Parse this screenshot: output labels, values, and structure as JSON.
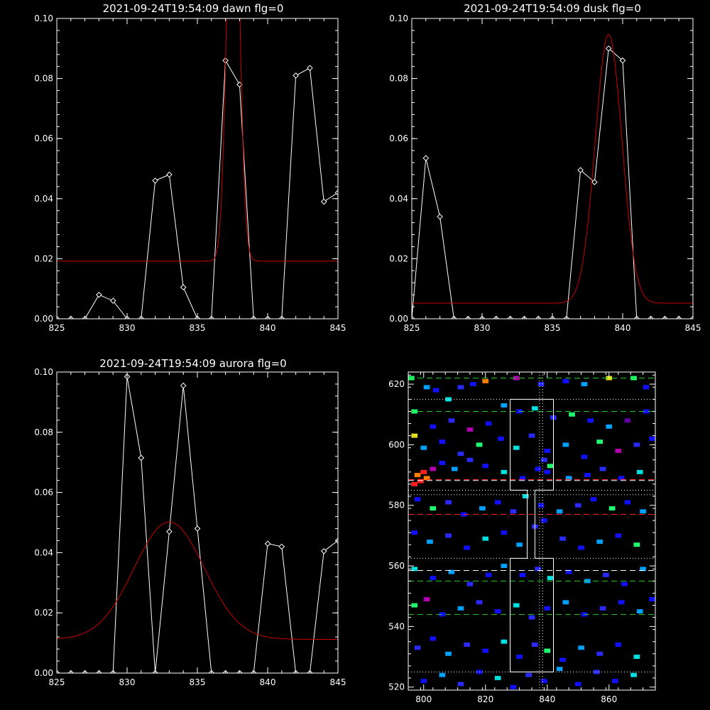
{
  "colors": {
    "background": "#000000",
    "axes": "#ffffff",
    "data": "#ffffff",
    "fit": "#cc0000",
    "green_dash": "#22cc22",
    "red_dash": "#ff2020",
    "white_dash": "#ffffff"
  },
  "chart_data": [
    {
      "type": "line",
      "title": "2021-09-24T19:54:09 dawn flg=0",
      "xlim": [
        825,
        845
      ],
      "ylim": [
        0,
        0.1
      ],
      "xticks": [
        825,
        830,
        835,
        840,
        845
      ],
      "yticks": [
        0.0,
        0.02,
        0.04,
        0.06,
        0.08,
        0.1
      ],
      "xtick_labels": [
        "825",
        "830",
        "835",
        "840",
        "845"
      ],
      "ytick_labels": [
        "0.00",
        "0.02",
        "0.04",
        "0.06",
        "0.08",
        "0.10"
      ],
      "series": [
        {
          "marker": "diamond",
          "x": [
            825,
            826,
            827,
            828,
            829,
            830,
            831,
            832,
            833,
            834,
            835,
            836,
            837,
            838,
            839,
            840,
            841,
            842,
            843,
            844,
            845
          ],
          "y": [
            0,
            0,
            0,
            0.008,
            0.006,
            0,
            0,
            0.046,
            0.048,
            0.0105,
            0,
            0,
            0.086,
            0.078,
            0,
            0,
            0,
            0.081,
            0.0835,
            0.039,
            0.042
          ]
        },
        {
          "marker": "none",
          "fit": {
            "baseline": 0.0192,
            "amplitude": 0.155,
            "center": 837.55,
            "sigma": 0.42
          }
        }
      ]
    },
    {
      "type": "line",
      "title": "2021-09-24T19:54:09 dusk flg=0",
      "xlim": [
        825,
        845
      ],
      "ylim": [
        0,
        0.1
      ],
      "xticks": [
        825,
        830,
        835,
        840,
        845
      ],
      "yticks": [
        0.0,
        0.02,
        0.04,
        0.06,
        0.08,
        0.1
      ],
      "xtick_labels": [
        "825",
        "830",
        "835",
        "840",
        "845"
      ],
      "ytick_labels": [
        "0.00",
        "0.02",
        "0.04",
        "0.06",
        "0.08",
        "0.10"
      ],
      "series": [
        {
          "marker": "diamond",
          "x": [
            825,
            826,
            827,
            828,
            829,
            830,
            831,
            832,
            833,
            834,
            835,
            836,
            837,
            838,
            839,
            840,
            841,
            842,
            843,
            844,
            845
          ],
          "y": [
            0,
            0.0535,
            0.034,
            0,
            0,
            0,
            0,
            0,
            0,
            0,
            0,
            0,
            0.0495,
            0.0455,
            0.09,
            0.086,
            0,
            0,
            0,
            0,
            0
          ]
        },
        {
          "marker": "none",
          "fit": {
            "baseline": 0.0052,
            "amplitude": 0.0895,
            "center": 839.0,
            "sigma": 0.95
          }
        }
      ]
    },
    {
      "type": "line",
      "title": "2021-09-24T19:54:09 aurora flg=0",
      "xlim": [
        825,
        845
      ],
      "ylim": [
        0,
        0.1
      ],
      "xticks": [
        825,
        830,
        835,
        840,
        845
      ],
      "yticks": [
        0.0,
        0.02,
        0.04,
        0.06,
        0.08,
        0.1
      ],
      "xtick_labels": [
        "825",
        "830",
        "835",
        "840",
        "845"
      ],
      "ytick_labels": [
        "0.00",
        "0.02",
        "0.04",
        "0.06",
        "0.08",
        "0.10"
      ],
      "series": [
        {
          "marker": "diamond",
          "x": [
            825,
            826,
            827,
            828,
            829,
            830,
            831,
            832,
            833,
            834,
            835,
            836,
            837,
            838,
            839,
            840,
            841,
            842,
            843,
            844,
            845
          ],
          "y": [
            0,
            0,
            0,
            0,
            0,
            0.0985,
            0.0715,
            0,
            0.047,
            0.0955,
            0.048,
            0,
            0,
            0,
            0,
            0.043,
            0.042,
            0,
            0,
            0.0405,
            0.044
          ]
        },
        {
          "marker": "none",
          "fit": {
            "baseline": 0.0112,
            "amplitude": 0.039,
            "center": 833.0,
            "sigma": 2.5
          }
        }
      ]
    },
    {
      "type": "heatmap",
      "title": "",
      "xlim": [
        795,
        875
      ],
      "ylim": [
        519,
        624
      ],
      "xticks": [
        800,
        820,
        840,
        860
      ],
      "yticks": [
        520,
        540,
        560,
        580,
        600,
        620
      ],
      "xtick_labels": [
        "800",
        "820",
        "840",
        "860"
      ],
      "ytick_labels": [
        "520",
        "540",
        "560",
        "580",
        "600",
        "620"
      ],
      "palette": [
        "#1010ff",
        "#2a2aff",
        "#00a0ff",
        "#00e0e0",
        "#20ff70",
        "#e0e020",
        "#ff8000",
        "#ff2020",
        "#b000b0",
        "#6000a0"
      ],
      "pixels": [
        [
          796,
          622,
          4
        ],
        [
          801,
          619,
          2
        ],
        [
          804,
          618,
          0
        ],
        [
          808,
          615,
          3
        ],
        [
          812,
          619,
          1
        ],
        [
          816,
          620,
          0
        ],
        [
          820,
          621,
          6
        ],
        [
          830,
          622,
          8
        ],
        [
          838,
          620,
          1
        ],
        [
          846,
          621,
          0
        ],
        [
          852,
          620,
          2
        ],
        [
          860,
          622,
          5
        ],
        [
          868,
          622,
          4
        ],
        [
          872,
          619,
          0
        ],
        [
          797,
          611,
          4
        ],
        [
          803,
          606,
          0
        ],
        [
          809,
          608,
          1
        ],
        [
          815,
          605,
          8
        ],
        [
          821,
          607,
          0
        ],
        [
          826,
          613,
          2
        ],
        [
          831,
          611,
          0
        ],
        [
          836,
          612,
          3
        ],
        [
          842,
          609,
          1
        ],
        [
          848,
          610,
          4
        ],
        [
          854,
          608,
          0
        ],
        [
          860,
          606,
          2
        ],
        [
          866,
          608,
          9
        ],
        [
          872,
          611,
          0
        ],
        [
          797,
          603,
          5
        ],
        [
          800,
          599,
          2
        ],
        [
          806,
          601,
          0
        ],
        [
          812,
          597,
          1
        ],
        [
          818,
          600,
          4
        ],
        [
          825,
          602,
          0
        ],
        [
          830,
          599,
          3
        ],
        [
          835,
          603,
          1
        ],
        [
          840,
          598,
          0
        ],
        [
          846,
          600,
          2
        ],
        [
          852,
          596,
          0
        ],
        [
          857,
          601,
          4
        ],
        [
          863,
          598,
          8
        ],
        [
          869,
          600,
          1
        ],
        [
          874,
          602,
          0
        ],
        [
          798,
          590,
          6
        ],
        [
          799,
          588,
          7
        ],
        [
          800,
          591,
          7
        ],
        [
          801,
          589,
          6
        ],
        [
          797,
          587,
          7
        ],
        [
          803,
          592,
          8
        ],
        [
          806,
          594,
          0
        ],
        [
          810,
          592,
          2
        ],
        [
          815,
          595,
          1
        ],
        [
          820,
          593,
          0
        ],
        [
          826,
          591,
          3
        ],
        [
          832,
          589,
          0
        ],
        [
          837,
          592,
          0
        ],
        [
          839,
          595,
          1
        ],
        [
          840,
          591,
          0
        ],
        [
          841,
          593,
          4
        ],
        [
          847,
          589,
          2
        ],
        [
          853,
          590,
          0
        ],
        [
          858,
          592,
          1
        ],
        [
          864,
          589,
          0
        ],
        [
          870,
          591,
          3
        ],
        [
          798,
          582,
          0
        ],
        [
          803,
          579,
          4
        ],
        [
          808,
          581,
          1
        ],
        [
          813,
          577,
          0
        ],
        [
          819,
          579,
          2
        ],
        [
          824,
          581,
          0
        ],
        [
          829,
          578,
          1
        ],
        [
          833,
          583,
          3
        ],
        [
          838,
          580,
          0
        ],
        [
          844,
          578,
          2
        ],
        [
          850,
          580,
          1
        ],
        [
          855,
          582,
          0
        ],
        [
          861,
          579,
          4
        ],
        [
          866,
          581,
          0
        ],
        [
          871,
          578,
          2
        ],
        [
          797,
          571,
          0
        ],
        [
          802,
          568,
          2
        ],
        [
          808,
          570,
          1
        ],
        [
          814,
          566,
          0
        ],
        [
          820,
          569,
          3
        ],
        [
          826,
          571,
          0
        ],
        [
          831,
          567,
          2
        ],
        [
          836,
          573,
          1
        ],
        [
          839,
          575,
          0
        ],
        [
          845,
          569,
          1
        ],
        [
          851,
          566,
          0
        ],
        [
          857,
          568,
          2
        ],
        [
          863,
          570,
          0
        ],
        [
          869,
          567,
          4
        ],
        [
          797,
          559,
          3
        ],
        [
          803,
          556,
          0
        ],
        [
          809,
          558,
          2
        ],
        [
          815,
          554,
          1
        ],
        [
          821,
          557,
          0
        ],
        [
          826,
          560,
          2
        ],
        [
          832,
          557,
          0
        ],
        [
          837,
          559,
          1
        ],
        [
          841,
          556,
          3
        ],
        [
          847,
          558,
          0
        ],
        [
          853,
          555,
          2
        ],
        [
          859,
          557,
          1
        ],
        [
          865,
          554,
          0
        ],
        [
          871,
          559,
          2
        ],
        [
          797,
          547,
          4
        ],
        [
          801,
          549,
          8
        ],
        [
          806,
          544,
          0
        ],
        [
          812,
          546,
          2
        ],
        [
          818,
          548,
          1
        ],
        [
          824,
          545,
          0
        ],
        [
          830,
          547,
          3
        ],
        [
          835,
          543,
          1
        ],
        [
          840,
          546,
          0
        ],
        [
          846,
          548,
          2
        ],
        [
          852,
          544,
          0
        ],
        [
          858,
          546,
          1
        ],
        [
          864,
          548,
          0
        ],
        [
          870,
          545,
          2
        ],
        [
          874,
          549,
          0
        ],
        [
          798,
          533,
          1
        ],
        [
          803,
          536,
          0
        ],
        [
          808,
          531,
          2
        ],
        [
          814,
          534,
          1
        ],
        [
          820,
          532,
          0
        ],
        [
          826,
          535,
          3
        ],
        [
          831,
          530,
          0
        ],
        [
          836,
          534,
          1
        ],
        [
          840,
          532,
          4
        ],
        [
          845,
          529,
          0
        ],
        [
          851,
          533,
          2
        ],
        [
          857,
          531,
          1
        ],
        [
          863,
          534,
          0
        ],
        [
          869,
          530,
          3
        ],
        [
          800,
          522,
          0
        ],
        [
          806,
          524,
          2
        ],
        [
          812,
          521,
          1
        ],
        [
          818,
          525,
          0
        ],
        [
          824,
          523,
          3
        ],
        [
          829,
          520,
          0
        ],
        [
          834,
          524,
          1
        ],
        [
          839,
          522,
          0
        ],
        [
          844,
          526,
          2
        ],
        [
          850,
          521,
          0
        ],
        [
          856,
          525,
          1
        ],
        [
          862,
          522,
          0
        ],
        [
          868,
          524,
          3
        ]
      ],
      "hlines": [
        {
          "y": 622,
          "style": "green-dash"
        },
        {
          "y": 611,
          "style": "green-dash"
        },
        {
          "y": 588.5,
          "style": "red-dash"
        },
        {
          "y": 588.2,
          "style": "white-dash"
        },
        {
          "y": 577,
          "style": "red-dash"
        },
        {
          "y": 558.5,
          "style": "white-dash"
        },
        {
          "y": 555,
          "style": "green-dash"
        },
        {
          "y": 544,
          "style": "green-dash"
        },
        {
          "y": 615,
          "style": "white-dot"
        },
        {
          "y": 585,
          "style": "white-dot"
        },
        {
          "y": 583.5,
          "style": "white-dot"
        },
        {
          "y": 562.5,
          "style": "white-dot"
        },
        {
          "y": 525,
          "style": "white-dot"
        }
      ],
      "vlines": [
        {
          "x": 837.5,
          "style": "white-dot"
        },
        {
          "x": 838.5,
          "style": "white-dot"
        }
      ],
      "box_outline": [
        [
          828,
          525
        ],
        [
          828,
          562.5
        ],
        [
          833.5,
          562.5
        ],
        [
          833.5,
          585
        ],
        [
          828,
          585
        ],
        [
          828,
          615
        ],
        [
          842,
          615
        ],
        [
          842,
          585
        ],
        [
          836,
          585
        ],
        [
          836,
          562.5
        ],
        [
          842,
          562.5
        ],
        [
          842,
          525
        ]
      ]
    }
  ]
}
